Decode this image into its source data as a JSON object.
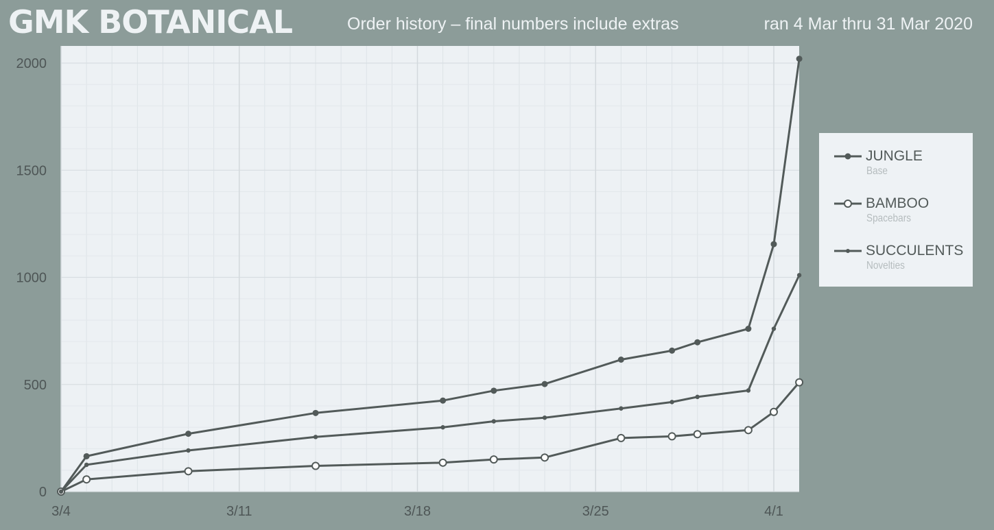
{
  "header": {
    "brand": "GMK BOTANICAL",
    "subtitle": "Order history – final numbers include extras",
    "date_range": "ran 4 Mar thru 31 Mar 2020"
  },
  "colors": {
    "page_background": "#8c9c99",
    "plot_background": "#edf1f4",
    "line": "#525a59",
    "header_text": "#eef2f4",
    "legend_subtext": "#b5bcbe"
  },
  "chart_data": {
    "type": "line",
    "title": "Order history – final numbers include extras",
    "xlabel": "",
    "ylabel": "",
    "x_unit": "date",
    "xlim": [
      "2020-03-04",
      "2020-04-01"
    ],
    "ylim": [
      0,
      2080
    ],
    "x_ticks": [
      {
        "date": "2020-03-04",
        "label": "3/4"
      },
      {
        "date": "2020-03-11",
        "label": "3/11"
      },
      {
        "date": "2020-03-18",
        "label": "3/18"
      },
      {
        "date": "2020-03-25",
        "label": "3/25"
      },
      {
        "date": "2020-04-01",
        "label": "4/1"
      }
    ],
    "y_ticks": [
      0,
      500,
      1000,
      1500,
      2000
    ],
    "grid": true,
    "legend_position": "right",
    "series": [
      {
        "name": "JUNGLE",
        "subtitle": "Base",
        "marker": "filled-circle",
        "points": [
          {
            "date": "2020-03-04",
            "value": 0
          },
          {
            "date": "2020-03-05",
            "value": 165
          },
          {
            "date": "2020-03-09",
            "value": 270
          },
          {
            "date": "2020-03-14",
            "value": 367
          },
          {
            "date": "2020-03-19",
            "value": 425
          },
          {
            "date": "2020-03-21",
            "value": 471
          },
          {
            "date": "2020-03-23",
            "value": 502
          },
          {
            "date": "2020-03-26",
            "value": 616
          },
          {
            "date": "2020-03-28",
            "value": 658
          },
          {
            "date": "2020-03-29",
            "value": 697
          },
          {
            "date": "2020-03-31",
            "value": 760
          },
          {
            "date": "2020-04-01",
            "value": 1155
          },
          {
            "date": "2020-04-02",
            "value": 2020
          }
        ]
      },
      {
        "name": "BAMBOO",
        "subtitle": "Spacebars",
        "marker": "hollow-circle",
        "points": [
          {
            "date": "2020-03-04",
            "value": 0
          },
          {
            "date": "2020-03-05",
            "value": 57
          },
          {
            "date": "2020-03-09",
            "value": 95
          },
          {
            "date": "2020-03-14",
            "value": 120
          },
          {
            "date": "2020-03-19",
            "value": 135
          },
          {
            "date": "2020-03-21",
            "value": 150
          },
          {
            "date": "2020-03-23",
            "value": 159
          },
          {
            "date": "2020-03-26",
            "value": 250
          },
          {
            "date": "2020-03-28",
            "value": 258
          },
          {
            "date": "2020-03-29",
            "value": 268
          },
          {
            "date": "2020-03-31",
            "value": 287
          },
          {
            "date": "2020-04-01",
            "value": 372
          },
          {
            "date": "2020-04-02",
            "value": 510
          }
        ]
      },
      {
        "name": "SUCCULENTS",
        "subtitle": "Novelties",
        "marker": "small-dot",
        "points": [
          {
            "date": "2020-03-04",
            "value": 0
          },
          {
            "date": "2020-03-05",
            "value": 125
          },
          {
            "date": "2020-03-09",
            "value": 192
          },
          {
            "date": "2020-03-14",
            "value": 255
          },
          {
            "date": "2020-03-19",
            "value": 300
          },
          {
            "date": "2020-03-21",
            "value": 328
          },
          {
            "date": "2020-03-23",
            "value": 345
          },
          {
            "date": "2020-03-26",
            "value": 388
          },
          {
            "date": "2020-03-28",
            "value": 418
          },
          {
            "date": "2020-03-29",
            "value": 442
          },
          {
            "date": "2020-03-31",
            "value": 472
          },
          {
            "date": "2020-04-01",
            "value": 760
          },
          {
            "date": "2020-04-02",
            "value": 1010
          }
        ]
      }
    ]
  }
}
